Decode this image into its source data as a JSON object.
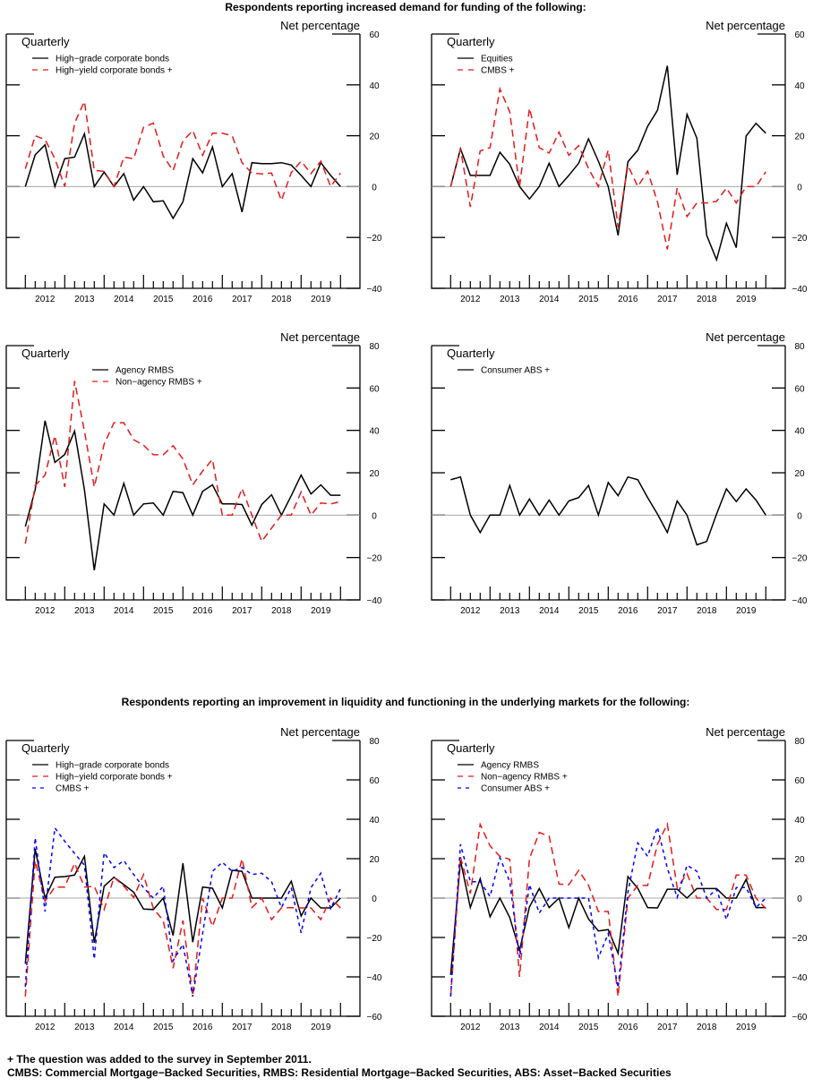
{
  "titles": {
    "demand": "Respondents reporting increased demand for funding of the following:",
    "liquidity": "Respondents reporting an improvement in liquidity and functioning in the underlying markets for the following:"
  },
  "footnotes": [
    "+ The question was added to the survey in September 2011.",
    "CMBS: Commercial Mortgage−Backed Securities, RMBS: Residential Mortgage−Backed Securities, ABS: Asset−Backed Securities"
  ],
  "chart_data": [
    {
      "type": "line",
      "frequency_label": "Quarterly",
      "ylabel": "Net percentage",
      "ylim": [
        -40,
        60
      ],
      "yticks": [
        -40,
        -20,
        0,
        20,
        40,
        60
      ],
      "xtick_labels": [
        "2012",
        "2013",
        "2014",
        "2015",
        "2016",
        "2017",
        "2018",
        "2019"
      ],
      "zero_line": true,
      "grid": false,
      "legend": "top-left",
      "x": [
        "2011Q4",
        "2012Q1",
        "2012Q2",
        "2012Q3",
        "2012Q4",
        "2013Q1",
        "2013Q2",
        "2013Q3",
        "2013Q4",
        "2014Q1",
        "2014Q2",
        "2014Q3",
        "2014Q4",
        "2015Q1",
        "2015Q2",
        "2015Q3",
        "2015Q4",
        "2016Q1",
        "2016Q2",
        "2016Q3",
        "2016Q4",
        "2017Q1",
        "2017Q2",
        "2017Q3",
        "2017Q4",
        "2018Q1",
        "2018Q2",
        "2018Q3",
        "2018Q4",
        "2019Q1",
        "2019Q2",
        "2019Q3",
        "2019Q4"
      ],
      "series": [
        {
          "name": "High−grade corporate bonds",
          "color": "#000000",
          "style": "solid",
          "values": [
            0,
            12.5,
            16.4,
            0,
            11,
            11.6,
            20.8,
            0,
            5.7,
            0,
            5.1,
            -5.3,
            0,
            -6,
            -5.6,
            -12.5,
            -6,
            11,
            5.4,
            15.6,
            0,
            5.1,
            -10,
            9.4,
            9,
            9,
            9.4,
            8.5,
            4.4,
            0,
            9.4,
            4.4,
            0
          ]
        },
        {
          "name": "High−yield corporate bonds +",
          "color": "#e41a1c",
          "style": "dashed",
          "values": [
            7,
            20,
            18.5,
            11,
            0,
            25,
            33.5,
            6.4,
            6,
            0,
            11.6,
            11,
            23.3,
            25,
            12,
            6.3,
            18,
            22,
            12.3,
            21,
            21,
            20,
            9.4,
            5.3,
            5,
            5.3,
            -5.5,
            5.5,
            10,
            5.1,
            10,
            0,
            5.3
          ]
        }
      ]
    },
    {
      "type": "line",
      "frequency_label": "Quarterly",
      "ylabel": "Net percentage",
      "ylim": [
        -40,
        60
      ],
      "yticks": [
        -40,
        -20,
        0,
        20,
        40,
        60
      ],
      "xtick_labels": [
        "2012",
        "2013",
        "2014",
        "2015",
        "2016",
        "2017",
        "2018",
        "2019"
      ],
      "zero_line": true,
      "grid": false,
      "legend": "top-left",
      "x": [
        "2011Q4",
        "2012Q1",
        "2012Q2",
        "2012Q3",
        "2012Q4",
        "2013Q1",
        "2013Q2",
        "2013Q3",
        "2013Q4",
        "2014Q1",
        "2014Q2",
        "2014Q3",
        "2014Q4",
        "2015Q1",
        "2015Q2",
        "2015Q3",
        "2015Q4",
        "2016Q1",
        "2016Q2",
        "2016Q3",
        "2016Q4",
        "2017Q1",
        "2017Q2",
        "2017Q3",
        "2017Q4",
        "2018Q1",
        "2018Q2",
        "2018Q3",
        "2018Q4",
        "2019Q1",
        "2019Q2",
        "2019Q3",
        "2019Q4"
      ],
      "series": [
        {
          "name": "Equities",
          "color": "#000000",
          "style": "solid",
          "values": [
            0,
            14.9,
            4.4,
            4.4,
            4.4,
            13.5,
            8.8,
            0,
            -4.9,
            0,
            9.2,
            0,
            4.4,
            9.2,
            18.8,
            10,
            0,
            -19.2,
            9.8,
            14.3,
            23.7,
            30,
            47.5,
            4.6,
            28.4,
            19,
            -19.2,
            -28.8,
            -14.4,
            -24,
            19.9,
            24.9,
            21
          ]
        },
        {
          "name": "CMBS +",
          "color": "#e41a1c",
          "style": "dashed",
          "values": [
            0,
            14.9,
            -8,
            14,
            15.3,
            38.4,
            29.4,
            0,
            30.8,
            15.3,
            13.2,
            21.4,
            12.3,
            16.1,
            7.1,
            0,
            14.4,
            -16,
            8.3,
            0,
            6.1,
            -6,
            -24.7,
            -0.6,
            -11.8,
            -6.4,
            -6.4,
            -5.8,
            -0.6,
            -6.4,
            0,
            0,
            5.8
          ]
        }
      ]
    },
    {
      "type": "line",
      "frequency_label": "Quarterly",
      "ylabel": "Net percentage",
      "ylim": [
        -40,
        80
      ],
      "yticks": [
        -40,
        -20,
        0,
        20,
        40,
        60,
        80
      ],
      "xtick_labels": [
        "2012",
        "2013",
        "2014",
        "2015",
        "2016",
        "2017",
        "2018",
        "2019"
      ],
      "zero_line": true,
      "grid": false,
      "legend": "top-center",
      "x": [
        "2011Q4",
        "2012Q1",
        "2012Q2",
        "2012Q3",
        "2012Q4",
        "2013Q1",
        "2013Q2",
        "2013Q3",
        "2013Q4",
        "2014Q1",
        "2014Q2",
        "2014Q3",
        "2014Q4",
        "2015Q1",
        "2015Q2",
        "2015Q3",
        "2015Q4",
        "2016Q1",
        "2016Q2",
        "2016Q3",
        "2016Q4",
        "2017Q1",
        "2017Q2",
        "2017Q3",
        "2017Q4",
        "2018Q1",
        "2018Q2",
        "2018Q3",
        "2018Q4",
        "2019Q1",
        "2019Q2",
        "2019Q3",
        "2019Q4"
      ],
      "series": [
        {
          "name": "Agency RMBS",
          "color": "#000000",
          "style": "solid",
          "values": [
            -5.4,
            12,
            44.6,
            24.9,
            28.6,
            39.7,
            12,
            -26,
            5.3,
            0,
            15,
            0,
            5.3,
            5.7,
            0,
            11.2,
            10.6,
            0,
            11.2,
            14.3,
            5.3,
            5.3,
            5,
            -4.7,
            5,
            9.6,
            0,
            9.2,
            18.9,
            10,
            14.3,
            9.4,
            9.4
          ]
        },
        {
          "name": "Non−agency RMBS +",
          "color": "#e41a1c",
          "style": "dashed",
          "values": [
            -13.5,
            14,
            18.9,
            37.5,
            13.3,
            63.3,
            39.7,
            13.3,
            33.5,
            43.6,
            43.6,
            35.6,
            33,
            28.5,
            28.5,
            32.8,
            26.5,
            14.3,
            20.8,
            26.3,
            0,
            0,
            12.6,
            0,
            -12.4,
            -6.1,
            0,
            0,
            11,
            0,
            5.7,
            5.3,
            6.4
          ]
        }
      ]
    },
    {
      "type": "line",
      "frequency_label": "Quarterly",
      "ylabel": "Net percentage",
      "ylim": [
        -40,
        80
      ],
      "yticks": [
        -40,
        -20,
        0,
        20,
        40,
        60,
        80
      ],
      "xtick_labels": [
        "2012",
        "2013",
        "2014",
        "2015",
        "2016",
        "2017",
        "2018",
        "2019"
      ],
      "zero_line": true,
      "grid": false,
      "legend": "top-left",
      "x": [
        "2011Q4",
        "2012Q1",
        "2012Q2",
        "2012Q3",
        "2012Q4",
        "2013Q1",
        "2013Q2",
        "2013Q3",
        "2013Q4",
        "2014Q1",
        "2014Q2",
        "2014Q3",
        "2014Q4",
        "2015Q1",
        "2015Q2",
        "2015Q3",
        "2015Q4",
        "2016Q1",
        "2016Q2",
        "2016Q3",
        "2016Q4",
        "2017Q1",
        "2017Q2",
        "2017Q3",
        "2017Q4",
        "2018Q1",
        "2018Q2",
        "2018Q3",
        "2018Q4",
        "2019Q1",
        "2019Q2",
        "2019Q3",
        "2019Q4"
      ],
      "series": [
        {
          "name": "Consumer ABS +",
          "color": "#000000",
          "style": "solid",
          "values": [
            16.7,
            18,
            0,
            -8.2,
            0,
            0,
            14,
            0,
            7.6,
            0,
            7.1,
            0,
            6.7,
            8.3,
            14,
            0,
            15.4,
            9.2,
            18,
            16.7,
            8.3,
            0.5,
            -8.2,
            6.7,
            0,
            -14,
            -12.4,
            0.5,
            12.4,
            6.4,
            12.4,
            7.1,
            0
          ]
        }
      ]
    },
    {
      "type": "line",
      "frequency_label": "Quarterly",
      "ylabel": "Net percentage",
      "ylim": [
        -60,
        80
      ],
      "yticks": [
        -60,
        -40,
        -20,
        0,
        20,
        40,
        60,
        80
      ],
      "xtick_labels": [
        "2012",
        "2013",
        "2014",
        "2015",
        "2016",
        "2017",
        "2018",
        "2019"
      ],
      "zero_line": true,
      "grid": false,
      "legend": "top-left",
      "x": [
        "2011Q4",
        "2012Q1",
        "2012Q2",
        "2012Q3",
        "2012Q4",
        "2013Q1",
        "2013Q2",
        "2013Q3",
        "2013Q4",
        "2014Q1",
        "2014Q2",
        "2014Q3",
        "2014Q4",
        "2015Q1",
        "2015Q2",
        "2015Q3",
        "2015Q4",
        "2016Q1",
        "2016Q2",
        "2016Q3",
        "2016Q4",
        "2017Q1",
        "2017Q2",
        "2017Q3",
        "2017Q4",
        "2018Q1",
        "2018Q2",
        "2018Q3",
        "2018Q4",
        "2019Q1",
        "2019Q2",
        "2019Q3",
        "2019Q4"
      ],
      "series": [
        {
          "name": "High−grade corporate bonds",
          "color": "#000000",
          "style": "solid",
          "values": [
            -33.3,
            25,
            0,
            10.6,
            10.9,
            11.7,
            21.2,
            -22.7,
            6,
            10.6,
            6.8,
            3,
            -5.6,
            -5.8,
            0,
            -19,
            17.7,
            -22.4,
            5.6,
            5,
            -5,
            14.1,
            13.6,
            0,
            0,
            0,
            0,
            8.6,
            -9.1,
            0,
            -5,
            -5,
            0
          ]
        },
        {
          "name": "High−yield corporate bonds +",
          "color": "#e41a1c",
          "style": "dashed",
          "values": [
            -50,
            19,
            -1.5,
            5.6,
            5.6,
            17.7,
            5.6,
            6,
            -5.8,
            10.6,
            6,
            0.3,
            12,
            -5.3,
            -11.4,
            -35.6,
            -11.4,
            -49.7,
            0,
            -14.4,
            0,
            0,
            20,
            -4.8,
            0,
            -10.9,
            -5,
            -4.8,
            -5,
            -5,
            -10.9,
            0,
            -5
          ]
        },
        {
          "name": "CMBS +",
          "color": "#0000ff",
          "style": "dotted",
          "values": [
            -45,
            30.6,
            -6.8,
            35.6,
            28.8,
            22.7,
            16.7,
            -31,
            23,
            15.5,
            19,
            12,
            5.3,
            0,
            6,
            -31.8,
            -23.5,
            -50,
            -18,
            13.6,
            18.2,
            13.6,
            15.5,
            12,
            12.6,
            8.3,
            -4.8,
            5.3,
            -17.7,
            5.3,
            12.6,
            -5.3,
            4.8
          ]
        }
      ]
    },
    {
      "type": "line",
      "frequency_label": "Quarterly",
      "ylabel": "Net percentage",
      "ylim": [
        -60,
        80
      ],
      "yticks": [
        -60,
        -40,
        -20,
        0,
        20,
        40,
        60,
        80
      ],
      "xtick_labels": [
        "2012",
        "2013",
        "2014",
        "2015",
        "2016",
        "2017",
        "2018",
        "2019"
      ],
      "zero_line": true,
      "grid": false,
      "legend": "top-left",
      "x": [
        "2011Q4",
        "2012Q1",
        "2012Q2",
        "2012Q3",
        "2012Q4",
        "2013Q1",
        "2013Q2",
        "2013Q3",
        "2013Q4",
        "2014Q1",
        "2014Q2",
        "2014Q3",
        "2014Q4",
        "2015Q1",
        "2015Q2",
        "2015Q3",
        "2015Q4",
        "2016Q1",
        "2016Q2",
        "2016Q3",
        "2016Q4",
        "2017Q1",
        "2017Q2",
        "2017Q3",
        "2017Q4",
        "2018Q1",
        "2018Q2",
        "2018Q3",
        "2018Q4",
        "2019Q1",
        "2019Q2",
        "2019Q3",
        "2019Q4"
      ],
      "series": [
        {
          "name": "Agency RMBS",
          "color": "#000000",
          "style": "solid",
          "values": [
            -39,
            19,
            -4.8,
            9.8,
            -9.5,
            0,
            -9.8,
            -26.5,
            -4.5,
            4.8,
            -4.8,
            0,
            -15,
            0,
            -10.6,
            -16.7,
            -16,
            -28,
            10.9,
            5,
            -4.8,
            -5,
            4.5,
            4.5,
            0,
            4.8,
            4.8,
            4.8,
            0,
            0,
            9.5,
            -4.8,
            -4.8
          ]
        },
        {
          "name": "Non−agency RMBS +",
          "color": "#e41a1c",
          "style": "dashed",
          "values": [
            -50,
            20.8,
            2.3,
            37.4,
            26.5,
            21.2,
            19.7,
            -40,
            20,
            33.3,
            31.4,
            7.1,
            6.8,
            14,
            6.5,
            -6.8,
            -6.8,
            -50,
            0,
            6.4,
            6.4,
            27.3,
            37.6,
            5.3,
            12.4,
            0,
            0,
            -5.8,
            -5.8,
            11.7,
            11.7,
            0,
            -5.3
          ]
        },
        {
          "name": "Consumer ABS +",
          "color": "#0000ff",
          "style": "dotted",
          "values": [
            -50,
            27.3,
            8.3,
            8.3,
            0.8,
            20.5,
            8.3,
            -30.3,
            6.8,
            -7.6,
            0,
            0,
            0,
            0,
            0,
            -30.3,
            -18,
            -45.5,
            3,
            28,
            21.2,
            36,
            15.2,
            0.3,
            16.7,
            13.6,
            0,
            4.5,
            -10.9,
            5.3,
            5.3,
            -4.8,
            0
          ]
        }
      ]
    }
  ]
}
